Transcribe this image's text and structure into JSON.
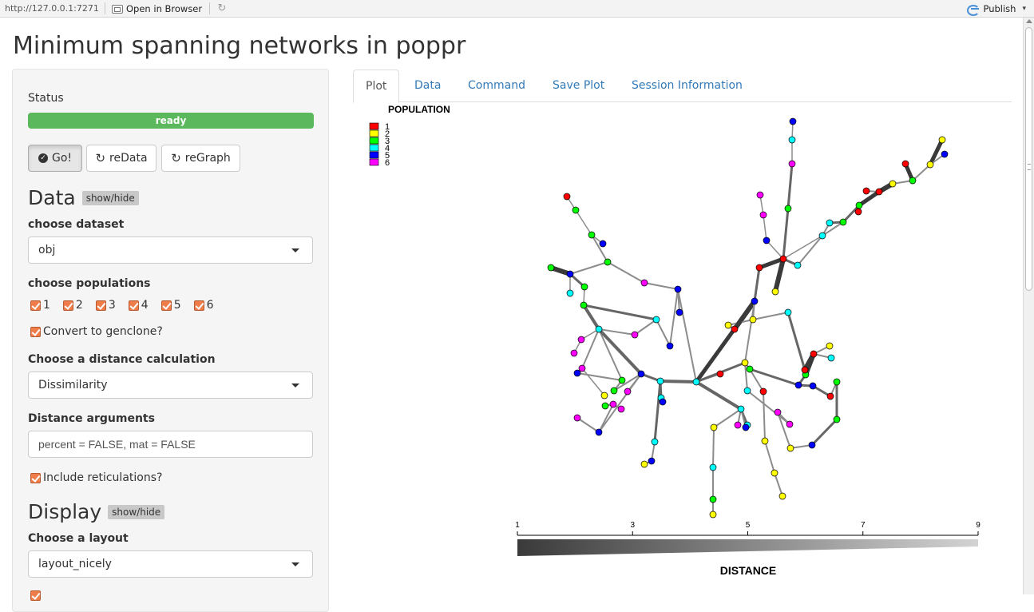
{
  "toolbar": {
    "url": "http://127.0.0.1:7271",
    "open_browser_label": "Open in Browser",
    "publish_label": "Publish"
  },
  "page_title": "Minimum spanning networks in poppr",
  "sidebar": {
    "status_label": "Status",
    "status_value": "ready",
    "status_color": "#5cb85c",
    "buttons": {
      "go": "Go!",
      "redata": "reData",
      "regraph": "reGraph"
    },
    "data_section": {
      "heading": "Data",
      "toggle": "show/hide",
      "dataset_label": "choose dataset",
      "dataset_value": "obj",
      "populations_label": "choose populations",
      "populations": [
        "1",
        "2",
        "3",
        "4",
        "5",
        "6"
      ],
      "genclone_label": "Convert to genclone?",
      "distance_label": "Choose a distance calculation",
      "distance_value": "Dissimilarity",
      "distargs_label": "Distance arguments",
      "distargs_value": "percent = FALSE, mat = FALSE",
      "reticulations_label": "Include reticulations?"
    },
    "display_section": {
      "heading": "Display",
      "toggle": "show/hide",
      "layout_label": "Choose a layout",
      "layout_value": "layout_nicely"
    }
  },
  "tabs": [
    "Plot",
    "Data",
    "Command",
    "Save Plot",
    "Session Information"
  ],
  "active_tab": "Plot",
  "plot": {
    "legend_title": "POPULATION",
    "legend": [
      {
        "label": "1",
        "color": "#ff0000"
      },
      {
        "label": "2",
        "color": "#ffff00"
      },
      {
        "label": "3",
        "color": "#00ff00"
      },
      {
        "label": "4",
        "color": "#00ffff"
      },
      {
        "label": "5",
        "color": "#0000ff"
      },
      {
        "label": "6",
        "color": "#ff00ff"
      }
    ],
    "scale_title": "DISTANCE",
    "scale_ticks": [
      "1",
      "3",
      "5",
      "7",
      "9"
    ],
    "scale_range": [
      1,
      9
    ]
  }
}
